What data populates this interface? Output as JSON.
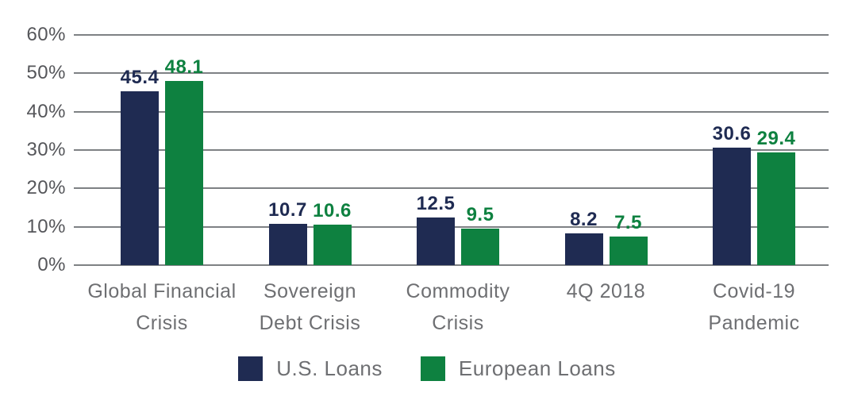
{
  "chart_data": {
    "type": "bar",
    "title": "",
    "categories": [
      "Global Financial Crisis",
      "Sovereign Debt Crisis",
      "Commodity Crisis",
      "4Q 2018",
      "Covid-19 Pandemic"
    ],
    "category_label_lines": [
      [
        "Global Financial",
        "Crisis"
      ],
      [
        "Sovereign",
        "Debt Crisis"
      ],
      [
        "Commodity",
        "Crisis"
      ],
      [
        "4Q 2018"
      ],
      [
        "Covid-19",
        "Pandemic"
      ]
    ],
    "series": [
      {
        "name": "U.S. Loans",
        "color": "#1f2b52",
        "values": [
          45.4,
          10.7,
          12.5,
          8.2,
          30.6
        ]
      },
      {
        "name": "European Loans",
        "color": "#0e8140",
        "values": [
          48.1,
          10.6,
          9.5,
          7.5,
          29.4
        ]
      }
    ],
    "value_labels": [
      "45.4",
      "48.1",
      "10.7",
      "10.6",
      "12.5",
      "9.5",
      "8.2",
      "7.5",
      "30.6",
      "29.4"
    ],
    "xlabel": "",
    "ylabel": "",
    "ylim": [
      0,
      60
    ],
    "ytick_labels": [
      "0%",
      "10%",
      "20%",
      "30%",
      "40%",
      "50%",
      "60%"
    ],
    "grid": true,
    "legend_position": "bottom",
    "colors": {
      "grid_line": "#7e8184",
      "tick_text": "#55565a",
      "category_text": "#6e6f72",
      "legend_text": "#6e6f72",
      "background": "#ffffff"
    }
  }
}
